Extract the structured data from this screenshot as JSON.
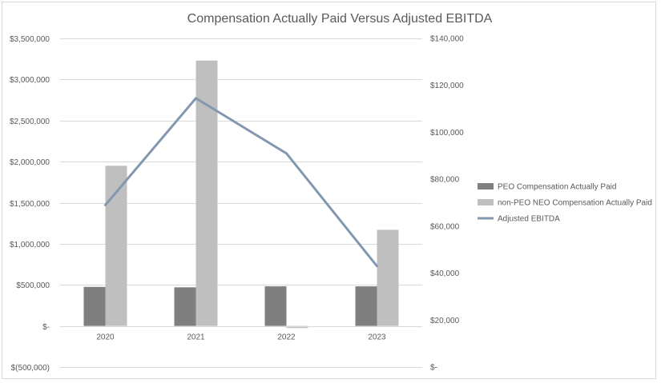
{
  "chart_data": {
    "type": "bar",
    "title": "Compensation Actually Paid Versus Adjusted EBITDA",
    "categories": [
      "2020",
      "2021",
      "2022",
      "2023"
    ],
    "series": [
      {
        "name": "PEO Compensation Actually Paid",
        "kind": "bar",
        "axis": "left",
        "color": "#7f7f7f",
        "values": [
          475000,
          470000,
          482000,
          482000
        ]
      },
      {
        "name": "non-PEO NEO Compensation Actually Paid",
        "kind": "bar",
        "axis": "left",
        "color": "#bfbfbf",
        "values": [
          1950000,
          3230000,
          -25000,
          1170000
        ]
      },
      {
        "name": "Adjusted EBITDA",
        "kind": "line",
        "axis": "right",
        "color": "#8497b0",
        "values": [
          69000,
          114500,
          91000,
          43000
        ]
      }
    ],
    "left_axis": {
      "ylim": [
        -500000,
        3500000
      ],
      "ticks": [
        -500000,
        0,
        500000,
        1000000,
        1500000,
        2000000,
        2500000,
        3000000,
        3500000
      ],
      "tick_labels": [
        "$(500,000)",
        "$-",
        "$500,000",
        "$1,000,000",
        "$1,500,000",
        "$2,000,000",
        "$2,500,000",
        "$3,000,000",
        "$3,500,000"
      ]
    },
    "right_axis": {
      "ylim": [
        0,
        140000
      ],
      "ticks": [
        0,
        20000,
        40000,
        60000,
        80000,
        100000,
        120000,
        140000
      ],
      "tick_labels": [
        "$-",
        "$20,000",
        "$40,000",
        "$60,000",
        "$80,000",
        "$100,000",
        "$120,000",
        "$140,000"
      ]
    },
    "grid": true,
    "legend_position": "right"
  }
}
